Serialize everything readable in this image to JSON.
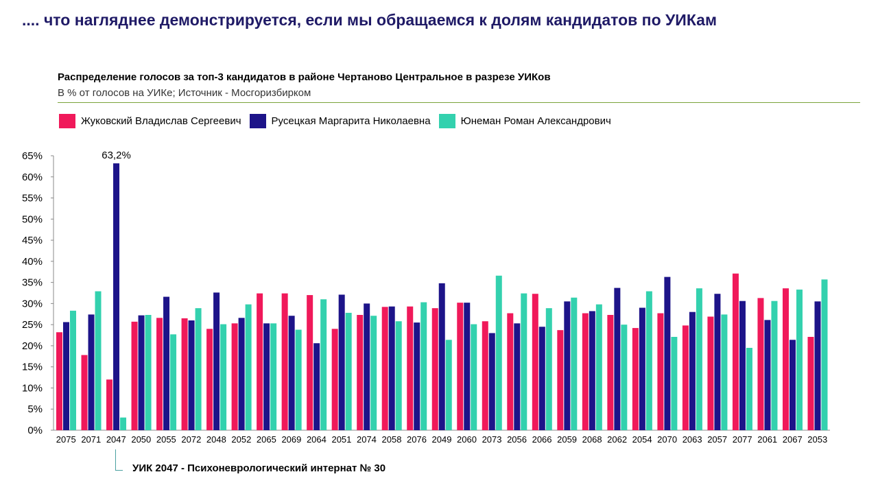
{
  "slide": {
    "title": ".... что нагляднее демонстрируется, если мы обращаемся к долям кандидатов по УИКам"
  },
  "chart_data": {
    "type": "bar",
    "title": "Распределение голосов за топ-3 кандидатов в районе Чертаново Центральное в разрезе УИКов",
    "subtitle": "В % от голосов на УИКе; Источник - Мосгоризбирком",
    "xlabel": "",
    "ylabel": "",
    "ylim": [
      0,
      65
    ],
    "yticks": [
      "0%",
      "5%",
      "10%",
      "15%",
      "20%",
      "25%",
      "30%",
      "35%",
      "40%",
      "45%",
      "50%",
      "55%",
      "60%",
      "65%"
    ],
    "grid": false,
    "legend_position": "top-left",
    "categories": [
      "2075",
      "2071",
      "2047",
      "2050",
      "2055",
      "2072",
      "2048",
      "2052",
      "2065",
      "2069",
      "2064",
      "2051",
      "2074",
      "2058",
      "2076",
      "2049",
      "2060",
      "2073",
      "2056",
      "2066",
      "2059",
      "2068",
      "2062",
      "2054",
      "2070",
      "2063",
      "2057",
      "2077",
      "2061",
      "2067",
      "2053"
    ],
    "series": [
      {
        "name": "Жуковский Владислав Сергеевич",
        "color": "#f0195a",
        "values": [
          23.2,
          17.8,
          12.0,
          25.7,
          26.6,
          26.5,
          24.0,
          25.3,
          32.4,
          32.4,
          32.0,
          24.0,
          27.3,
          29.2,
          29.3,
          28.9,
          30.2,
          25.8,
          27.7,
          32.3,
          23.7,
          27.7,
          27.3,
          24.2,
          27.7,
          24.8,
          26.9,
          37.1,
          31.3,
          33.6,
          22.1
        ]
      },
      {
        "name": "Русецкая Маргарита Николаевна",
        "color": "#1d1489",
        "values": [
          25.6,
          27.4,
          63.2,
          27.2,
          31.6,
          26.0,
          32.6,
          26.6,
          25.3,
          27.1,
          20.6,
          32.1,
          30.0,
          29.3,
          25.5,
          34.8,
          30.2,
          23.0,
          25.3,
          24.5,
          30.5,
          28.2,
          33.7,
          29.0,
          36.3,
          28.0,
          32.3,
          30.6,
          26.1,
          21.4,
          30.5
        ]
      },
      {
        "name": "Юнеман Роман Александрович",
        "color": "#33d1ae",
        "values": [
          28.3,
          32.9,
          3.0,
          27.3,
          22.7,
          28.9,
          25.1,
          29.8,
          25.3,
          23.8,
          31.0,
          27.8,
          27.1,
          25.8,
          30.3,
          21.4,
          25.1,
          36.6,
          32.4,
          28.9,
          31.4,
          29.8,
          25.0,
          32.9,
          22.1,
          33.6,
          27.4,
          19.5,
          30.6,
          33.3,
          35.7
        ]
      }
    ],
    "annotations": [
      {
        "category": "2047",
        "series": "Русецкая Маргарита Николаевна",
        "label": "63,2%"
      }
    ]
  },
  "footnote": {
    "text": "УИК 2047 - Психоневрологический интернат № 30"
  }
}
